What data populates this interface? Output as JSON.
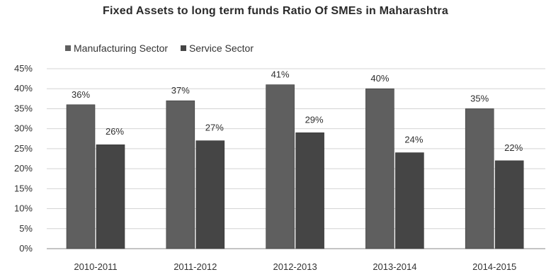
{
  "chart_data": {
    "type": "bar",
    "title": "Fixed Assets to long term funds Ratio Of SMEs in Maharashtra",
    "xlabel": "",
    "ylabel": "",
    "categories": [
      "2010-2011",
      "2011-2012",
      "2012-2013",
      "2013-2014",
      "2014-2015"
    ],
    "series": [
      {
        "name": "Manufacturing Sector",
        "values": [
          36,
          37,
          41,
          40,
          35
        ],
        "labels": [
          "36%",
          "37%",
          "41%",
          "40%",
          "35%"
        ],
        "color": "#5f5f5f"
      },
      {
        "name": "Service Sector",
        "values": [
          26,
          27,
          29,
          24,
          22
        ],
        "labels": [
          "26%",
          "27%",
          "29%",
          "24%",
          "22%"
        ],
        "color": "#454545"
      }
    ],
    "ylim": [
      0,
      45
    ],
    "yticks": [
      "0%",
      "5%",
      "10%",
      "15%",
      "20%",
      "25%",
      "30%",
      "35%",
      "40%",
      "45%"
    ],
    "ytick_values": [
      0,
      5,
      10,
      15,
      20,
      25,
      30,
      35,
      40,
      45
    ],
    "grid": true,
    "legend_position": "top-left"
  }
}
